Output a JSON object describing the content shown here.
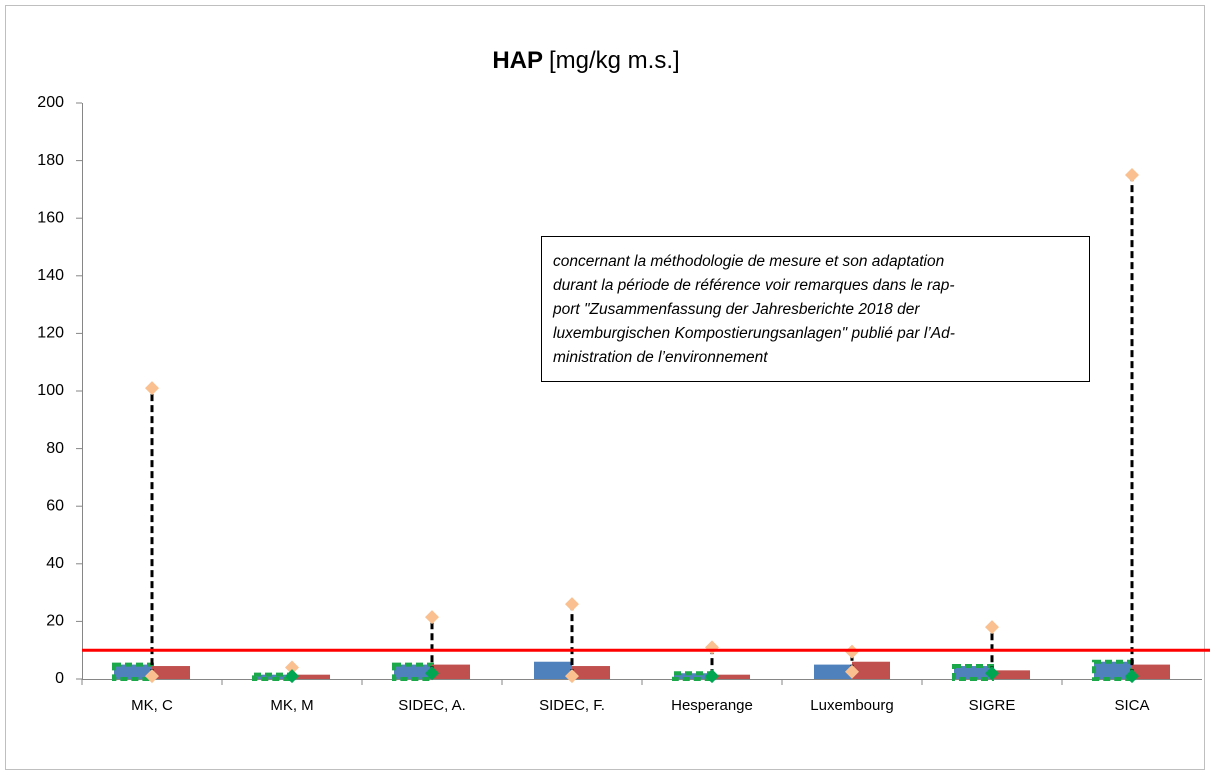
{
  "chart_data": {
    "type": "bar",
    "title": "HAP",
    "title_unit": "[mg/kg m.s.]",
    "categories": [
      "MK, C",
      "MK, M",
      "SIDEC, A.",
      "SIDEC, F.",
      "Hesperange",
      "Luxembourg",
      "SIGRE",
      "SICA"
    ],
    "series": [
      {
        "color": "#4f81bd",
        "values": [
          5,
          1.5,
          5,
          6,
          2,
          5,
          4.5,
          6
        ],
        "highlight": [
          true,
          true,
          true,
          false,
          true,
          false,
          true,
          true
        ],
        "highlight_color": "#1aa84a"
      },
      {
        "color": "#c0504d",
        "values": [
          4.5,
          1.5,
          5,
          4.5,
          1.5,
          6,
          3,
          5
        ]
      },
      {
        "color": "#fac090",
        "marker": "diamond",
        "values": [
          101,
          4,
          21.5,
          26,
          11,
          9.5,
          18,
          175
        ]
      },
      {
        "color": "#fac090",
        "marker": "diamond",
        "values": [
          1,
          null,
          null,
          1,
          null,
          2.5,
          null,
          null
        ]
      },
      {
        "color": "#00a651",
        "marker": "diamond",
        "values": [
          null,
          1,
          2,
          null,
          1,
          null,
          2,
          1
        ]
      }
    ],
    "limit": {
      "value": 10,
      "color": "#ff0000"
    },
    "annotation": [
      "concernant la méthodologie de mesure et son adaptation",
      "durant la période de référence voir remarques dans le rap-",
      "port \"Zusammenfassung der Jahresberichte 2018 der",
      "luxemburgischen Kompostierungsanlagen\" publié par l’Ad-",
      "ministration de l’environnement"
    ],
    "ylim": [
      0,
      200
    ],
    "yticks": [
      0,
      20,
      40,
      60,
      80,
      100,
      120,
      140,
      160,
      180,
      200
    ],
    "grid": false
  }
}
